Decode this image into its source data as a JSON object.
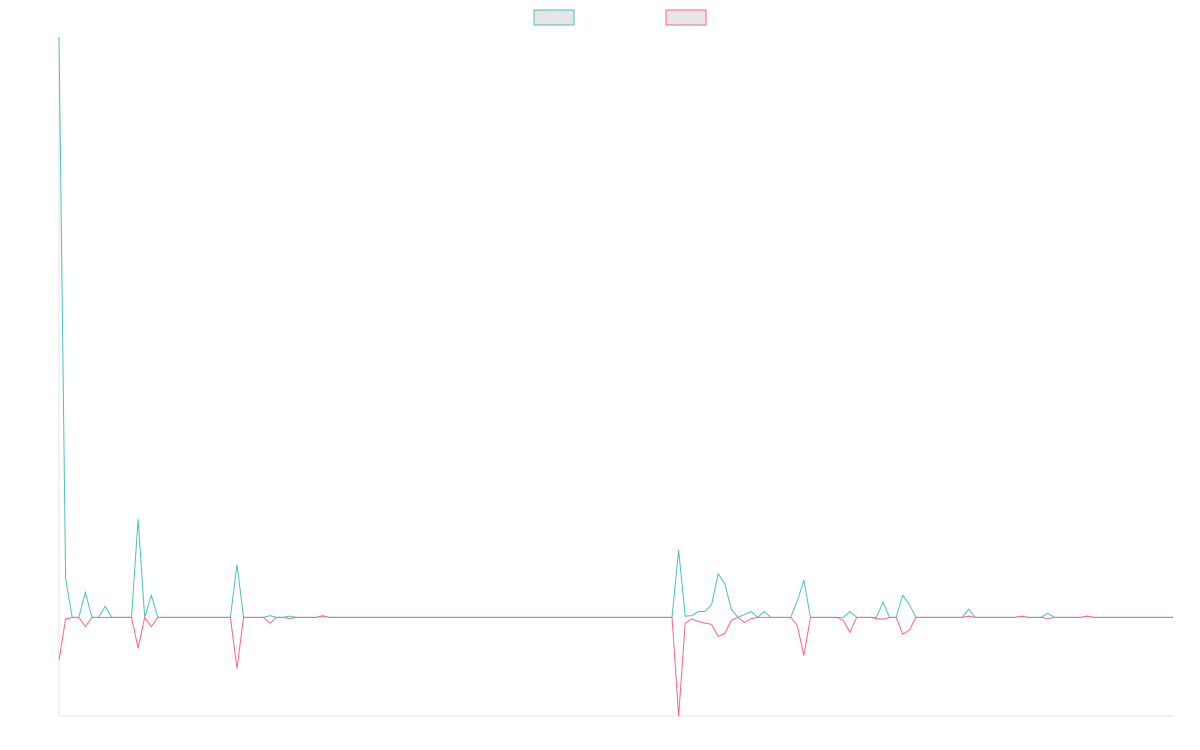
{
  "chart_data": {
    "type": "line",
    "categories": [
      null,
      null,
      null,
      null,
      null,
      null,
      null,
      null,
      null,
      null,
      null,
      null,
      null,
      null,
      null,
      null,
      null,
      null,
      null,
      null,
      null,
      null,
      null,
      null,
      null,
      null,
      null,
      null,
      null,
      null,
      null,
      null,
      null,
      null,
      null,
      null,
      null,
      null,
      null,
      null,
      null,
      null,
      null,
      null,
      null,
      null,
      null,
      null,
      null,
      null,
      null,
      null,
      null,
      null,
      null,
      null,
      null,
      null,
      null,
      null,
      null,
      null,
      null,
      null,
      null,
      null,
      null,
      null,
      null,
      null,
      null,
      null,
      null,
      null,
      null,
      null,
      null,
      null,
      null,
      null,
      null,
      null,
      null,
      null,
      null,
      null,
      null,
      null,
      null,
      null,
      null,
      null,
      null,
      null,
      null,
      null,
      null,
      null,
      null,
      null,
      null,
      null,
      null,
      null,
      null,
      null,
      null,
      null,
      null,
      null,
      null,
      null,
      null,
      null,
      null,
      null,
      null,
      null,
      null,
      null,
      null,
      null,
      null,
      null,
      null,
      null,
      null,
      null,
      null,
      null,
      null,
      null,
      null,
      null,
      null,
      null,
      null,
      null,
      null,
      null,
      null,
      null,
      null,
      null,
      null,
      null,
      null,
      null,
      null,
      null,
      null,
      null,
      null,
      null,
      null,
      null,
      null,
      null,
      null,
      null,
      null,
      null,
      null,
      null,
      null,
      null,
      null,
      null,
      null,
      null
    ],
    "series": [
      {
        "color": "#4bc0c0",
        "values": [
          100,
          6.7,
          0,
          0,
          4.3,
          0,
          0,
          1.9,
          0,
          0,
          0,
          0,
          16.9,
          0,
          3.8,
          0,
          0,
          0,
          0,
          0,
          0,
          0,
          0,
          0,
          0,
          0,
          0,
          9.1,
          0,
          0,
          0,
          0,
          0.3,
          0,
          0,
          0.2,
          0,
          0,
          0,
          0,
          0.3,
          0,
          0,
          0,
          0,
          0,
          0,
          0,
          0,
          0,
          0,
          0,
          0,
          0,
          0,
          0,
          0,
          0,
          0,
          0,
          0,
          0,
          0,
          0,
          0,
          0,
          0,
          0,
          0,
          0,
          0,
          0,
          0,
          0,
          0,
          0,
          0,
          0,
          0,
          0,
          0,
          0,
          0,
          0,
          0,
          0,
          0,
          0,
          0,
          0,
          0,
          0,
          0,
          0,
          11.6,
          0.2,
          0.3,
          1,
          1,
          2.2,
          7.5,
          5.8,
          1.4,
          0,
          0.5,
          1,
          0,
          1,
          0,
          0,
          0,
          0,
          2.8,
          6.4,
          0,
          0,
          0,
          0,
          0,
          0,
          1,
          0,
          0,
          0,
          0,
          2.6,
          0,
          0,
          3.8,
          2.2,
          0,
          0,
          0,
          0,
          0,
          0,
          0,
          0,
          1.4,
          0,
          0,
          0,
          0,
          0,
          0,
          0,
          0.2,
          0,
          0,
          0,
          0.7,
          0,
          0,
          0,
          0,
          0,
          0.2,
          0,
          0,
          0,
          0,
          0,
          0,
          0,
          0,
          0,
          0,
          0,
          0,
          0
        ]
      },
      {
        "color": "#ff6384",
        "values": [
          -7.4,
          -0.3,
          0,
          0,
          -1.6,
          0,
          0,
          0,
          0,
          0,
          0,
          0,
          -5.3,
          0,
          -1.6,
          0,
          0,
          0,
          0,
          0,
          0,
          0,
          0,
          0,
          0,
          0,
          0,
          -8.8,
          0,
          0,
          0,
          0,
          -1,
          0,
          0,
          -0.2,
          0,
          0,
          0,
          0,
          0.2,
          0,
          0,
          0,
          0,
          0,
          0,
          0,
          0,
          0,
          0,
          0,
          0,
          0,
          0,
          0,
          0,
          0,
          0,
          0,
          0,
          0,
          0,
          0,
          0,
          0,
          0,
          0,
          0,
          0,
          0,
          0,
          0,
          0,
          0,
          0,
          0,
          0,
          0,
          0,
          0,
          0,
          0,
          0,
          0,
          0,
          0,
          0,
          0,
          0,
          0,
          0,
          0,
          0,
          -17,
          -1,
          -0.3,
          -0.7,
          -1,
          -1.2,
          -3.3,
          -2.8,
          -0.5,
          0,
          -0.9,
          -0.2,
          0,
          0,
          0,
          0,
          0,
          0,
          -1.4,
          -6.6,
          0,
          0,
          0,
          0,
          0,
          -0.5,
          -2.6,
          0,
          0,
          0,
          -0.2,
          -0.3,
          0,
          0,
          -2.9,
          -2.2,
          0,
          0,
          0,
          0,
          0,
          0,
          0,
          0,
          0.2,
          0,
          0,
          0,
          0,
          0,
          0,
          0,
          0.2,
          0,
          0,
          0,
          -0.2,
          0,
          0,
          0,
          0,
          0,
          0.2,
          0,
          0,
          0,
          0,
          0,
          0,
          0,
          0,
          0,
          0,
          0,
          0,
          0
        ]
      }
    ],
    "ylim": [
      -17,
      100
    ],
    "grid": false,
    "legend": "top"
  }
}
